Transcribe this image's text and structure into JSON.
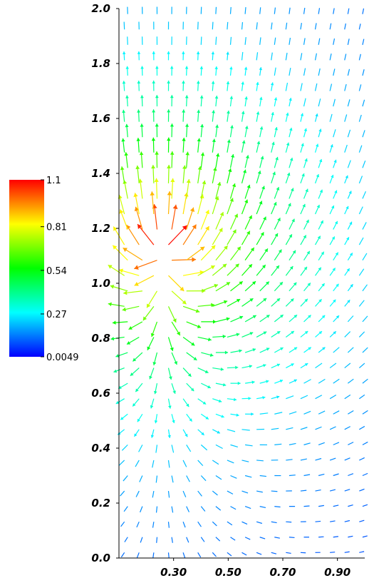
{
  "chart_data": {
    "type": "vector-field",
    "title": "",
    "xlabel": "",
    "ylabel": "",
    "xlim": [
      0.1,
      1.0
    ],
    "ylim": [
      0.0,
      2.0
    ],
    "x_ticks": [
      "0.30",
      "0.50",
      "0.70",
      "0.90"
    ],
    "x_tick_values": [
      0.3,
      0.5,
      0.7,
      0.9
    ],
    "y_ticks": [
      "0.0",
      "0.2",
      "0.4",
      "0.6",
      "0.8",
      "1.0",
      "1.2",
      "1.4",
      "1.6",
      "1.8",
      "2.0"
    ],
    "y_tick_values": [
      0.0,
      0.2,
      0.4,
      0.6,
      0.8,
      1.0,
      1.2,
      1.4,
      1.6,
      1.8,
      2.0
    ],
    "grid": false,
    "colorbar": {
      "placement": "left",
      "min": 0.0049,
      "max": 1.1,
      "tick_labels": [
        "1.1",
        "0.81",
        "0.54",
        "0.27",
        "0.0049"
      ],
      "tick_values": [
        1.1,
        0.81,
        0.54,
        0.27,
        0.0049
      ],
      "colormap": [
        "#0000ff",
        "#00ffff",
        "#00ff00",
        "#ffff00",
        "#ff0000"
      ]
    },
    "field": {
      "description_source": "estimated from arrows: outward-radiating field with peak magnitude near the left edge",
      "peak_center": [
        0.26,
        1.15
      ],
      "peak_magnitude": 1.1,
      "grid_x_range": [
        0.12,
        0.98
      ],
      "grid_y_range": [
        0.02,
        1.98
      ]
    }
  }
}
